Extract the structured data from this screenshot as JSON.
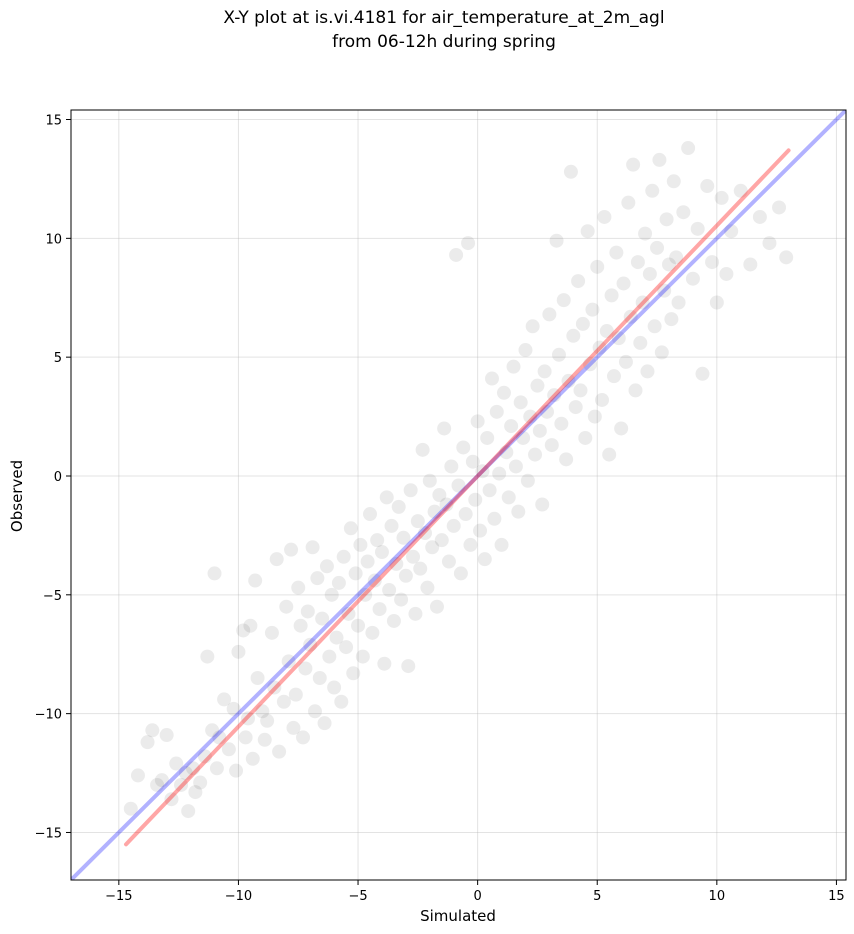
{
  "chart_data": {
    "type": "scatter",
    "title": [
      "X-Y plot at is.vi.4181 for air_temperature_at_2m_agl",
      "from 06-12h during spring"
    ],
    "xlabel": "Simulated",
    "ylabel": "Observed",
    "xlim": [
      -17,
      15.4
    ],
    "ylim": [
      -17,
      15.4
    ],
    "xticks": [
      -15,
      -10,
      -5,
      0,
      5,
      10,
      15
    ],
    "yticks": [
      -15,
      -10,
      -5,
      0,
      5,
      10,
      15
    ],
    "grid": true,
    "point_color": "#000000",
    "series": [
      {
        "kind": "points",
        "color": "#000000",
        "opacity": 0.08,
        "points": [
          [
            -14.5,
            -14.0
          ],
          [
            -14.2,
            -12.6
          ],
          [
            -13.8,
            -11.2
          ],
          [
            -13.6,
            -10.7
          ],
          [
            -13.4,
            -13.0
          ],
          [
            -13.2,
            -12.8
          ],
          [
            -13.0,
            -10.9
          ],
          [
            -12.8,
            -13.6
          ],
          [
            -12.6,
            -12.1
          ],
          [
            -12.4,
            -13.0
          ],
          [
            -12.2,
            -12.5
          ],
          [
            -12.1,
            -14.1
          ],
          [
            -11.9,
            -12.3
          ],
          [
            -11.8,
            -13.3
          ],
          [
            -11.6,
            -12.9
          ],
          [
            -11.4,
            -11.8
          ],
          [
            -11.3,
            -7.6
          ],
          [
            -11.1,
            -10.7
          ],
          [
            -11.0,
            -4.1
          ],
          [
            -10.9,
            -12.3
          ],
          [
            -10.8,
            -11.0
          ],
          [
            -10.6,
            -9.4
          ],
          [
            -10.4,
            -11.5
          ],
          [
            -10.2,
            -9.8
          ],
          [
            -10.1,
            -12.4
          ],
          [
            -10.0,
            -7.4
          ],
          [
            -9.8,
            -6.5
          ],
          [
            -9.7,
            -11.0
          ],
          [
            -9.6,
            -10.2
          ],
          [
            -9.5,
            -6.3
          ],
          [
            -9.4,
            -11.9
          ],
          [
            -9.3,
            -4.4
          ],
          [
            -9.2,
            -8.5
          ],
          [
            -9.0,
            -9.9
          ],
          [
            -8.9,
            -11.1
          ],
          [
            -8.8,
            -10.3
          ],
          [
            -8.6,
            -6.6
          ],
          [
            -8.5,
            -8.9
          ],
          [
            -8.4,
            -3.5
          ],
          [
            -8.3,
            -11.6
          ],
          [
            -8.1,
            -9.5
          ],
          [
            -8.0,
            -5.5
          ],
          [
            -7.9,
            -7.8
          ],
          [
            -7.8,
            -3.1
          ],
          [
            -7.7,
            -10.6
          ],
          [
            -7.6,
            -9.2
          ],
          [
            -7.5,
            -4.7
          ],
          [
            -7.4,
            -6.3
          ],
          [
            -7.3,
            -11.0
          ],
          [
            -7.2,
            -8.1
          ],
          [
            -7.1,
            -5.7
          ],
          [
            -7.0,
            -7.1
          ],
          [
            -6.9,
            -3.0
          ],
          [
            -6.8,
            -9.9
          ],
          [
            -6.7,
            -4.3
          ],
          [
            -6.6,
            -8.5
          ],
          [
            -6.5,
            -6.0
          ],
          [
            -6.4,
            -10.4
          ],
          [
            -6.3,
            -3.8
          ],
          [
            -6.2,
            -7.6
          ],
          [
            -6.1,
            -5.0
          ],
          [
            -6.0,
            -8.9
          ],
          [
            -5.9,
            -6.8
          ],
          [
            -5.8,
            -4.5
          ],
          [
            -5.7,
            -9.5
          ],
          [
            -5.6,
            -3.4
          ],
          [
            -5.5,
            -7.2
          ],
          [
            -5.4,
            -5.8
          ],
          [
            -5.3,
            -2.2
          ],
          [
            -5.2,
            -8.3
          ],
          [
            -5.1,
            -4.1
          ],
          [
            -5.0,
            -6.3
          ],
          [
            -4.9,
            -2.9
          ],
          [
            -4.8,
            -7.6
          ],
          [
            -4.7,
            -5.0
          ],
          [
            -4.6,
            -3.6
          ],
          [
            -4.5,
            -1.6
          ],
          [
            -4.4,
            -6.6
          ],
          [
            -4.3,
            -4.4
          ],
          [
            -4.2,
            -2.7
          ],
          [
            -4.1,
            -5.6
          ],
          [
            -4.0,
            -3.2
          ],
          [
            -3.9,
            -7.9
          ],
          [
            -3.8,
            -0.9
          ],
          [
            -3.7,
            -4.8
          ],
          [
            -3.6,
            -2.1
          ],
          [
            -3.5,
            -6.1
          ],
          [
            -3.4,
            -3.7
          ],
          [
            -3.3,
            -1.3
          ],
          [
            -3.2,
            -5.2
          ],
          [
            -3.1,
            -2.6
          ],
          [
            -3.0,
            -4.2
          ],
          [
            -2.9,
            -8.0
          ],
          [
            -2.8,
            -0.6
          ],
          [
            -2.7,
            -3.4
          ],
          [
            -2.6,
            -5.8
          ],
          [
            -2.5,
            -1.9
          ],
          [
            -2.4,
            -3.9
          ],
          [
            -2.3,
            1.1
          ],
          [
            -2.2,
            -2.4
          ],
          [
            -2.1,
            -4.7
          ],
          [
            -2.0,
            -0.2
          ],
          [
            -1.9,
            -3.0
          ],
          [
            -1.8,
            -1.5
          ],
          [
            -1.7,
            -5.5
          ],
          [
            -1.6,
            -0.8
          ],
          [
            -1.5,
            -2.7
          ],
          [
            -1.4,
            2.0
          ],
          [
            -1.3,
            -1.2
          ],
          [
            -1.2,
            -3.6
          ],
          [
            -1.1,
            0.4
          ],
          [
            -1.0,
            -2.1
          ],
          [
            -0.9,
            9.3
          ],
          [
            -0.8,
            -0.4
          ],
          [
            -0.7,
            -4.1
          ],
          [
            -0.6,
            1.2
          ],
          [
            -0.5,
            -1.6
          ],
          [
            -0.4,
            9.8
          ],
          [
            -0.3,
            -2.9
          ],
          [
            -0.2,
            0.6
          ],
          [
            -0.1,
            -1.0
          ],
          [
            0.0,
            2.3
          ],
          [
            0.1,
            -2.3
          ],
          [
            0.2,
            0.2
          ],
          [
            0.3,
            -3.5
          ],
          [
            0.4,
            1.6
          ],
          [
            0.5,
            -0.6
          ],
          [
            0.6,
            4.1
          ],
          [
            0.7,
            -1.8
          ],
          [
            0.8,
            2.7
          ],
          [
            0.9,
            0.1
          ],
          [
            1.0,
            -2.9
          ],
          [
            1.1,
            3.5
          ],
          [
            1.2,
            1.0
          ],
          [
            1.3,
            -0.9
          ],
          [
            1.4,
            2.1
          ],
          [
            1.5,
            4.6
          ],
          [
            1.6,
            0.4
          ],
          [
            1.7,
            -1.5
          ],
          [
            1.8,
            3.1
          ],
          [
            1.9,
            1.6
          ],
          [
            2.0,
            5.3
          ],
          [
            2.1,
            -0.2
          ],
          [
            2.2,
            2.5
          ],
          [
            2.3,
            6.3
          ],
          [
            2.4,
            0.9
          ],
          [
            2.5,
            3.8
          ],
          [
            2.6,
            1.9
          ],
          [
            2.7,
            -1.2
          ],
          [
            2.8,
            4.4
          ],
          [
            2.9,
            2.7
          ],
          [
            3.0,
            6.8
          ],
          [
            3.1,
            1.3
          ],
          [
            3.2,
            3.4
          ],
          [
            3.3,
            9.9
          ],
          [
            3.4,
            5.1
          ],
          [
            3.5,
            2.2
          ],
          [
            3.6,
            7.4
          ],
          [
            3.7,
            0.7
          ],
          [
            3.8,
            4.0
          ],
          [
            3.9,
            12.8
          ],
          [
            4.0,
            5.9
          ],
          [
            4.1,
            2.9
          ],
          [
            4.2,
            8.2
          ],
          [
            4.3,
            3.6
          ],
          [
            4.4,
            6.4
          ],
          [
            4.5,
            1.6
          ],
          [
            4.6,
            10.3
          ],
          [
            4.7,
            4.7
          ],
          [
            4.8,
            7.0
          ],
          [
            4.9,
            2.5
          ],
          [
            5.0,
            8.8
          ],
          [
            5.1,
            5.4
          ],
          [
            5.2,
            3.2
          ],
          [
            5.3,
            10.9
          ],
          [
            5.4,
            6.1
          ],
          [
            5.5,
            0.9
          ],
          [
            5.6,
            7.6
          ],
          [
            5.7,
            4.2
          ],
          [
            5.8,
            9.4
          ],
          [
            5.9,
            5.8
          ],
          [
            6.0,
            2.0
          ],
          [
            6.1,
            8.1
          ],
          [
            6.2,
            4.8
          ],
          [
            6.3,
            11.5
          ],
          [
            6.4,
            6.7
          ],
          [
            6.5,
            13.1
          ],
          [
            6.6,
            3.6
          ],
          [
            6.7,
            9.0
          ],
          [
            6.8,
            5.6
          ],
          [
            6.9,
            7.3
          ],
          [
            7.0,
            10.2
          ],
          [
            7.1,
            4.4
          ],
          [
            7.2,
            8.5
          ],
          [
            7.3,
            12.0
          ],
          [
            7.4,
            6.3
          ],
          [
            7.5,
            9.6
          ],
          [
            7.6,
            13.3
          ],
          [
            7.7,
            5.2
          ],
          [
            7.8,
            7.8
          ],
          [
            7.9,
            10.8
          ],
          [
            8.0,
            8.9
          ],
          [
            8.1,
            6.6
          ],
          [
            8.2,
            12.4
          ],
          [
            8.3,
            9.2
          ],
          [
            8.4,
            7.3
          ],
          [
            8.6,
            11.1
          ],
          [
            8.8,
            13.8
          ],
          [
            9.0,
            8.3
          ],
          [
            9.2,
            10.4
          ],
          [
            9.4,
            4.3
          ],
          [
            9.6,
            12.2
          ],
          [
            9.8,
            9.0
          ],
          [
            10.0,
            7.3
          ],
          [
            10.2,
            11.7
          ],
          [
            10.4,
            8.5
          ],
          [
            10.6,
            10.3
          ],
          [
            11.0,
            12.0
          ],
          [
            11.4,
            8.9
          ],
          [
            11.8,
            10.9
          ],
          [
            12.2,
            9.8
          ],
          [
            12.6,
            11.3
          ],
          [
            12.9,
            9.2
          ]
        ]
      },
      {
        "kind": "line",
        "color": "#0000ff",
        "opacity": 0.3,
        "x": [
          -17,
          15.4
        ],
        "y": [
          -17,
          15.4
        ]
      },
      {
        "kind": "line",
        "color": "#ff0000",
        "opacity": 0.35,
        "x": [
          -14.7,
          13.0
        ],
        "y": [
          -15.5,
          13.7
        ]
      }
    ]
  }
}
